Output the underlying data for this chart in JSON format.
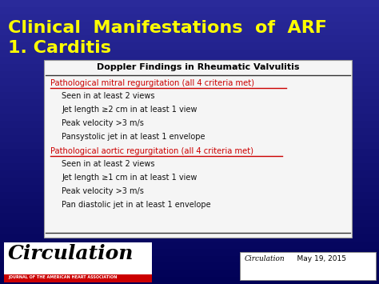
{
  "title_line1": "Clinical  Manifestations  of  ARF",
  "title_line2": "1. Carditis",
  "title_color": "#FFFF00",
  "bg_color": "#2a2a9a",
  "table_title": "Doppler Findings in Rheumatic Valvulitis",
  "table_bg": "#f5f5f5",
  "header1": "Pathological mitral regurgitation (all 4 criteria met)",
  "header1_color": "#cc0000",
  "sub1": [
    "Seen in at least 2 views",
    "Jet length ≥2 cm in at least 1 view",
    "Peak velocity >3 m/s",
    "Pansystolic jet in at least 1 envelope"
  ],
  "header2": "Pathological aortic regurgitation (all 4 criteria met)",
  "header2_color": "#cc0000",
  "sub2": [
    "Seen in at least 2 views",
    "Jet length ≥1 cm in at least 1 view",
    "Peak velocity >3 m/s",
    "Pan diastolic jet in at least 1 envelope"
  ],
  "footer_left_title": "Circulation",
  "footer_left_subtitle": "JOURNAL OF THE AMERICAN HEART ASSOCIATION",
  "footer_right_journal": "Circulation",
  "footer_right_date": "    May 19, 2015",
  "footer_bg": "#ffffff",
  "footer_red": "#cc0000",
  "bg_gradient_top": "#2a2a9a",
  "bg_gradient_bottom": "#000055"
}
